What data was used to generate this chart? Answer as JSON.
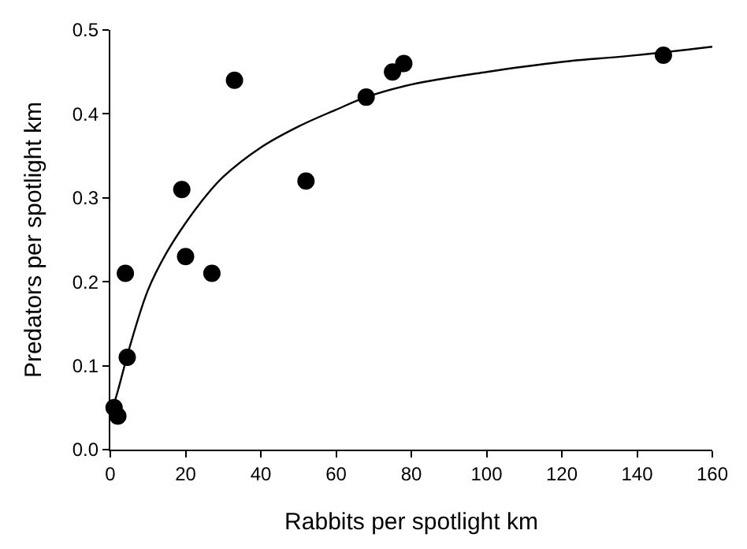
{
  "chart_data": {
    "type": "scatter",
    "xlabel": "Rabbits per spotlight km",
    "ylabel": "Predators per spotlight km",
    "xlim": [
      0,
      160
    ],
    "xticks": [
      0,
      20,
      40,
      60,
      80,
      100,
      120,
      140,
      160
    ],
    "ylim": [
      0,
      0.5
    ],
    "yticks": [
      {
        "value": 0,
        "label": "0.0"
      },
      0.1,
      0.2,
      0.3,
      0.4,
      0.5
    ],
    "series": [
      {
        "color": "#000000",
        "marker": "circle",
        "x": [
          1,
          2,
          4,
          4.5,
          19,
          20,
          27,
          33,
          52,
          68,
          75,
          78,
          147
        ],
        "values": [
          0.05,
          0.04,
          0.21,
          0.11,
          0.31,
          0.23,
          0.21,
          0.44,
          0.32,
          0.42,
          0.45,
          0.46,
          0.47
        ]
      },
      {
        "type": "line",
        "color": "#000000",
        "line_style": "solid",
        "x": [
          0,
          2,
          5,
          10,
          15,
          20,
          25,
          30,
          40,
          50,
          60,
          68,
          80,
          100,
          120,
          140,
          160
        ],
        "values": [
          0.04,
          0.07,
          0.12,
          0.19,
          0.235,
          0.27,
          0.3,
          0.325,
          0.36,
          0.385,
          0.405,
          0.42,
          0.435,
          0.45,
          0.462,
          0.47,
          0.48
        ]
      }
    ]
  }
}
